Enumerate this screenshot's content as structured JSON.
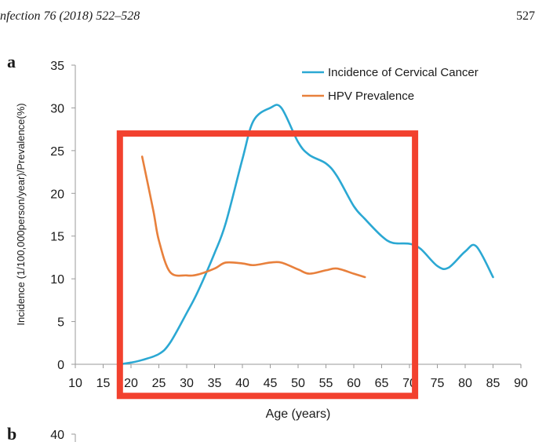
{
  "header": {
    "journal_ref": "nfection 76 (2018) 522–528",
    "page_number": "527"
  },
  "panels": {
    "a_label": "a",
    "b_label": "b"
  },
  "colors": {
    "series_incidence": "#2ba8d3",
    "series_hpv": "#e8803c",
    "highlight_box": "#f2412e"
  },
  "annotation": {
    "type": "highlight-rectangle",
    "x_range": [
      18,
      71
    ],
    "y_range": [
      -3.7,
      27
    ]
  },
  "chart_data": [
    {
      "type": "line",
      "title": "",
      "xlabel": "Age (years)",
      "ylabel": "Incidence (1/100,000person/year)/Prevalence(%)",
      "xlim": [
        10,
        90
      ],
      "ylim": [
        0,
        35
      ],
      "xticks": [
        "10",
        "15",
        "20",
        "25",
        "30",
        "35",
        "40",
        "45",
        "50",
        "55",
        "60",
        "65",
        "70",
        "75",
        "80",
        "85",
        "90"
      ],
      "yticks": [
        "0",
        "5",
        "10",
        "15",
        "20",
        "25",
        "30",
        "35"
      ],
      "grid": false,
      "legend_position": "top-right",
      "series": [
        {
          "name": "Incidence of Cervical Cancer",
          "color": "#2ba8d3",
          "x": [
            18,
            20,
            22,
            25,
            27,
            30,
            32,
            35,
            37,
            40,
            42,
            45,
            47,
            50,
            52,
            55,
            57,
            60,
            62,
            65,
            67,
            70,
            72,
            75,
            77,
            80,
            82,
            85
          ],
          "y": [
            0,
            0.2,
            0.5,
            1.2,
            2.5,
            6,
            8.5,
            13,
            16.5,
            24,
            28.5,
            30,
            30,
            26,
            24.5,
            23.5,
            22,
            18.5,
            17,
            15,
            14.2,
            14.1,
            13.5,
            11.5,
            11.3,
            13.2,
            13.8,
            10.2
          ]
        },
        {
          "name": "HPV Prevalence",
          "color": "#e8803c",
          "x": [
            22,
            24,
            25,
            27,
            30,
            32,
            35,
            37,
            40,
            42,
            45,
            47,
            50,
            52,
            55,
            57,
            60,
            62
          ],
          "y": [
            24.3,
            18,
            14.5,
            10.8,
            10.4,
            10.5,
            11.2,
            11.9,
            11.8,
            11.6,
            11.9,
            11.9,
            11.1,
            10.6,
            11.0,
            11.2,
            10.6,
            10.2
          ]
        }
      ]
    },
    {
      "type": "line",
      "title": "",
      "yticks": [
        "40"
      ]
    }
  ]
}
